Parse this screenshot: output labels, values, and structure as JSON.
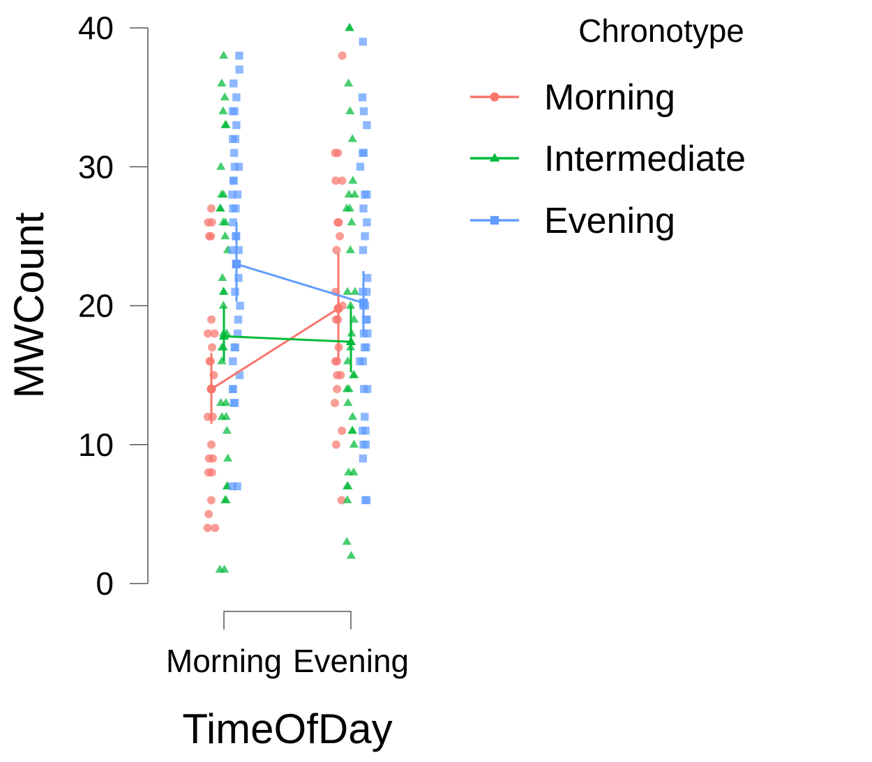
{
  "chart_data": {
    "type": "scatter",
    "xlabel": "TimeOfDay",
    "ylabel": "MWCount",
    "categories": [
      "Morning",
      "Evening"
    ],
    "ylim": [
      0,
      40
    ],
    "yticks": [
      0,
      10,
      20,
      30,
      40
    ],
    "legend": {
      "title": "Chronotype",
      "placement": "right"
    },
    "series": [
      {
        "name": "Morning",
        "color": "#F8766D",
        "marker": "circle",
        "means": [
          14.0,
          19.8
        ],
        "ci": [
          [
            11.5,
            16.6
          ],
          [
            16.0,
            23.8
          ]
        ],
        "points": [
          [
            27,
            26,
            26,
            25,
            25,
            19,
            18,
            18,
            17,
            16,
            16,
            15,
            12,
            12,
            10,
            9,
            9,
            8,
            8,
            6,
            5,
            4,
            4
          ],
          [
            38,
            31,
            31,
            29,
            29,
            26,
            26,
            25,
            24,
            21,
            20,
            19,
            19,
            17,
            16,
            16,
            15,
            15,
            14,
            13,
            11,
            10,
            6
          ]
        ]
      },
      {
        "name": "Intermediate",
        "color": "#00BA38",
        "marker": "triangle",
        "means": [
          17.8,
          17.4
        ],
        "ci": [
          [
            16.0,
            20.0
          ],
          [
            15.2,
            20.0
          ]
        ],
        "points": [
          [
            38,
            36,
            35,
            34,
            33,
            33,
            30,
            28,
            28,
            27,
            27,
            26,
            26,
            25,
            24,
            22,
            21,
            21,
            20,
            18,
            18,
            17,
            17,
            16,
            13,
            13,
            12,
            12,
            11,
            9,
            7,
            7,
            6,
            6,
            1,
            1
          ],
          [
            40,
            40,
            36,
            34,
            32,
            29,
            28,
            28,
            27,
            27,
            26,
            24,
            21,
            21,
            20,
            19,
            18,
            17,
            16,
            15,
            15,
            14,
            14,
            13,
            12,
            11,
            11,
            10,
            8,
            8,
            7,
            7,
            6,
            3,
            2
          ]
        ]
      },
      {
        "name": "Evening",
        "color": "#619CFF",
        "marker": "square",
        "means": [
          23.0,
          20.2
        ],
        "ci": [
          [
            20.3,
            26.0
          ],
          [
            17.8,
            22.5
          ]
        ],
        "points": [
          [
            38,
            37,
            36,
            35,
            34,
            34,
            33,
            32,
            32,
            31,
            30,
            30,
            29,
            29,
            28,
            28,
            27,
            27,
            26,
            25,
            25,
            24,
            24,
            23,
            22,
            21,
            20,
            19,
            18,
            17,
            17,
            16,
            15,
            14,
            14,
            13,
            13,
            7,
            7
          ],
          [
            39,
            35,
            34,
            33,
            31,
            31,
            30,
            28,
            28,
            27,
            26,
            25,
            24,
            22,
            21,
            21,
            20,
            20,
            19,
            19,
            18,
            18,
            17,
            17,
            16,
            16,
            14,
            14,
            12,
            11,
            11,
            10,
            10,
            9,
            6,
            6
          ]
        ]
      }
    ]
  }
}
